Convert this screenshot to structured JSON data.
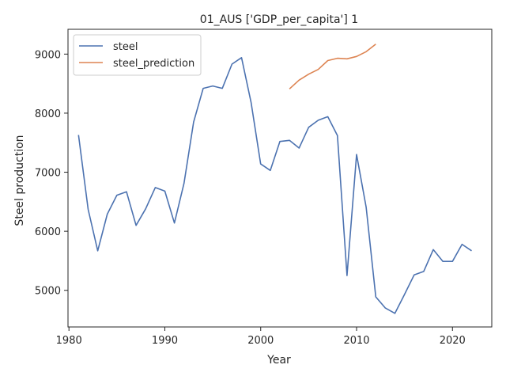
{
  "chart_data": {
    "type": "line",
    "title": "01_AUS ['GDP_per_capita'] 1",
    "xlabel": "Year",
    "ylabel": "Steel production",
    "xlim": [
      1979.9,
      2024.1
    ],
    "ylim": [
      4380,
      9420
    ],
    "xticks": [
      1980,
      1990,
      2000,
      2010,
      2020
    ],
    "yticks": [
      5000,
      6000,
      7000,
      8000,
      9000
    ],
    "grid": false,
    "legend_position": "upper-left",
    "series": [
      {
        "name": "steel",
        "color": "#4c72b0",
        "x": [
          1981,
          1982,
          1983,
          1984,
          1985,
          1986,
          1987,
          1988,
          1989,
          1990,
          1991,
          1992,
          1993,
          1994,
          1995,
          1996,
          1997,
          1998,
          1999,
          2000,
          2001,
          2002,
          2003,
          2004,
          2005,
          2006,
          2007,
          2008,
          2009,
          2010,
          2011,
          2012,
          2013,
          2014,
          2015,
          2016,
          2017,
          2018,
          2019,
          2020,
          2021,
          2022
        ],
        "y": [
          7630,
          6370,
          5670,
          6290,
          6610,
          6670,
          6100,
          6380,
          6740,
          6680,
          6140,
          6810,
          7850,
          8420,
          8460,
          8420,
          8830,
          8940,
          8180,
          7140,
          7030,
          7520,
          7540,
          7410,
          7760,
          7880,
          7940,
          7620,
          5250,
          7300,
          6410,
          4890,
          4700,
          4610,
          4930,
          5260,
          5320,
          5690,
          5490,
          5490,
          5780,
          5670
        ]
      },
      {
        "name": "steel_prediction",
        "color": "#dd8452",
        "x": [
          2003,
          2004,
          2005,
          2006,
          2007,
          2008,
          2009,
          2010,
          2011,
          2012
        ],
        "y": [
          8410,
          8560,
          8660,
          8740,
          8890,
          8930,
          8920,
          8960,
          9040,
          9170
        ]
      }
    ]
  }
}
